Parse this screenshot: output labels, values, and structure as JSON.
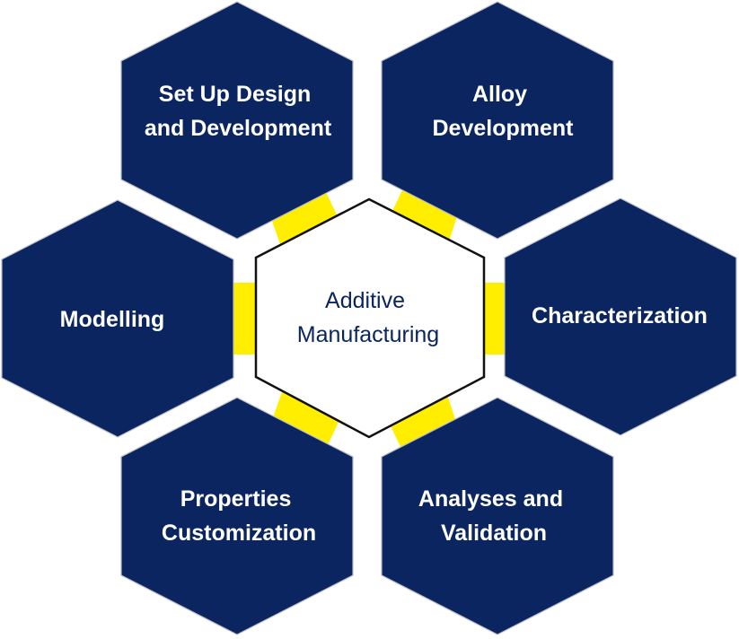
{
  "diagram": {
    "center": {
      "lines": [
        "Additive",
        "Manufacturing"
      ]
    },
    "nodes": [
      {
        "id": "set-up-design",
        "lines": [
          "Set Up Design",
          "and Development"
        ]
      },
      {
        "id": "alloy-development",
        "lines": [
          "Alloy",
          "Development"
        ]
      },
      {
        "id": "modelling",
        "lines": [
          "Modelling"
        ]
      },
      {
        "id": "characterization",
        "lines": [
          "Characterization"
        ]
      },
      {
        "id": "properties-customization",
        "lines": [
          "Properties",
          "Customization"
        ]
      },
      {
        "id": "analyses-validation",
        "lines": [
          "Analyses and",
          "Validation"
        ]
      }
    ]
  },
  "colors": {
    "hex_fill": "#0b2560",
    "hex_text": "#ffffff",
    "center_text": "#0b2560",
    "connector": "#ffee00",
    "center_border": "#111111"
  }
}
